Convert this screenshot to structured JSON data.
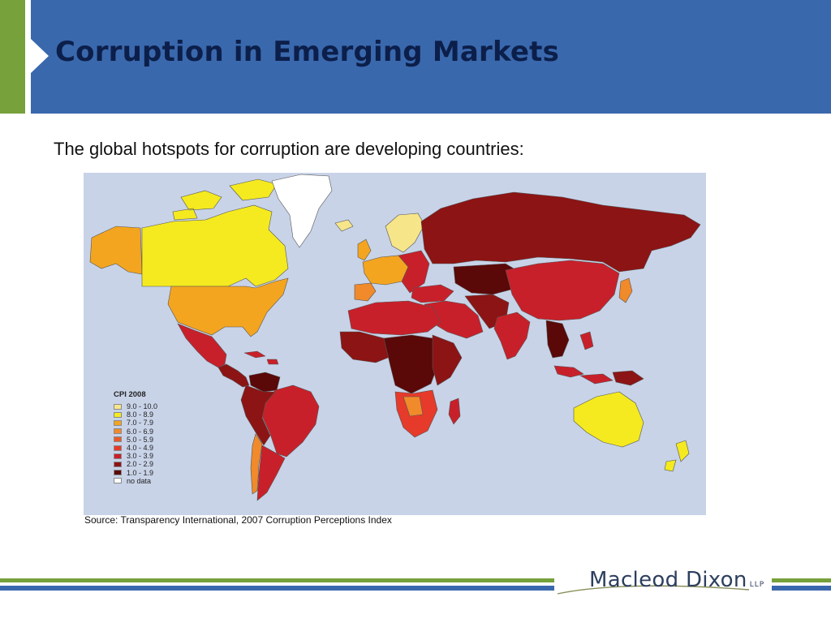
{
  "header": {
    "title": "Corruption in Emerging Markets"
  },
  "intro_text": "The global hotspots for corruption are developing countries:",
  "map": {
    "legend_title": "CPI 2008",
    "legend": [
      {
        "label": "9.0 - 10.0",
        "color": "#f7e58a"
      },
      {
        "label": "8.0 - 8.9",
        "color": "#f4ea1f"
      },
      {
        "label": "7.0 - 7.9",
        "color": "#f4a51f"
      },
      {
        "label": "6.0 - 6.9",
        "color": "#f08a2a"
      },
      {
        "label": "5.0 - 5.9",
        "color": "#ea5a26"
      },
      {
        "label": "4.0 - 4.9",
        "color": "#e63a2a"
      },
      {
        "label": "3.0 - 3.9",
        "color": "#c8202a"
      },
      {
        "label": "2.0 - 2.9",
        "color": "#8c1414"
      },
      {
        "label": "1.0 - 1.9",
        "color": "#5a0808"
      },
      {
        "label": "no data",
        "color": "#ffffff"
      }
    ],
    "ocean_color": "#c8d3e8"
  },
  "source": "Source: Transparency International, 2007 Corruption Perceptions Index",
  "footer": {
    "logo_text": "Macleod Dixon",
    "logo_suffix": "LLP"
  },
  "colors": {
    "header_blue": "#3a68ad",
    "accent_green": "#76a13b",
    "title_navy": "#0c1f4a"
  }
}
